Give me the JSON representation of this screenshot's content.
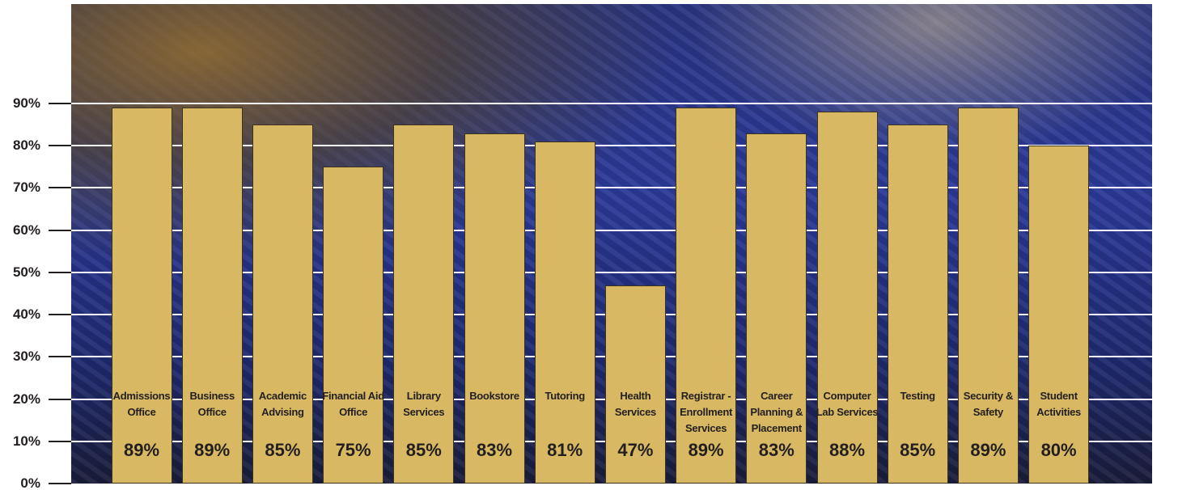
{
  "chart_data": {
    "type": "bar",
    "categories": [
      "Admissions Office",
      "Business Office",
      "Academic Advising",
      "Financial Aid Office",
      "Library Services",
      "Bookstore",
      "Tutoring",
      "Health Services",
      "Registrar - Enrollment Services",
      "Career Planning & Placement",
      "Computer Lab Services",
      "Testing",
      "Security & Safety",
      "Student Activities"
    ],
    "values": [
      89,
      89,
      85,
      75,
      85,
      83,
      81,
      47,
      89,
      83,
      88,
      85,
      89,
      80
    ],
    "value_labels": [
      "89%",
      "89%",
      "85%",
      "75%",
      "85%",
      "83%",
      "81%",
      "47%",
      "89%",
      "83%",
      "88%",
      "85%",
      "89%",
      "80%"
    ],
    "color": "#d8b862",
    "ylim": [
      0,
      90
    ],
    "yticks": [
      {
        "value": 0,
        "label": "0%"
      },
      {
        "value": 10,
        "label": "10%"
      },
      {
        "value": 20,
        "label": "20%"
      },
      {
        "value": 30,
        "label": "30%"
      },
      {
        "value": 40,
        "label": "40%"
      },
      {
        "value": 50,
        "label": "50%"
      },
      {
        "value": 60,
        "label": "60%"
      },
      {
        "value": 70,
        "label": "70%"
      },
      {
        "value": 80,
        "label": "80%"
      },
      {
        "value": 90,
        "label": "90%"
      }
    ],
    "grid": true
  }
}
